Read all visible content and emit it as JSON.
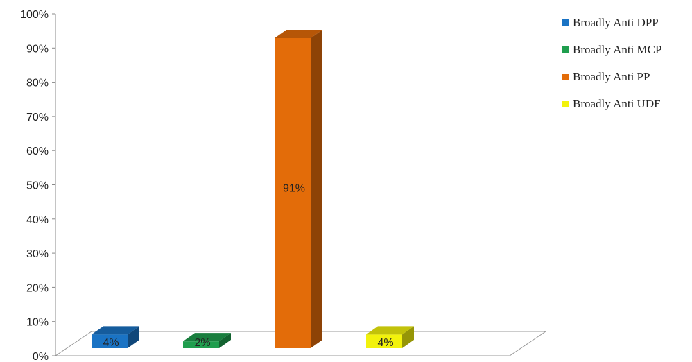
{
  "chart_data": {
    "type": "bar",
    "categories": [
      "Broadly Anti DPP",
      "Broadly Anti MCP",
      "Broadly Anti PP",
      "Broadly Anti UDF"
    ],
    "values": [
      4,
      2,
      91,
      4
    ],
    "data_labels": [
      "4%",
      "2%",
      "91%",
      "4%"
    ],
    "colors": [
      "#1a73c4",
      "#1f9e4e",
      "#e36c09",
      "#f2f20c"
    ],
    "ylim": [
      0,
      100
    ],
    "yticks": [
      "0%",
      "10%",
      "20%",
      "30%",
      "40%",
      "50%",
      "60%",
      "70%",
      "80%",
      "90%",
      "100%"
    ],
    "title": "",
    "xlabel": "",
    "ylabel": "",
    "legend": {
      "placement": "right",
      "entries": [
        "Broadly Anti DPP",
        "Broadly Anti MCP",
        "Broadly Anti PP",
        "Broadly Anti UDF"
      ]
    },
    "grid": false,
    "style": "3d-bar"
  }
}
